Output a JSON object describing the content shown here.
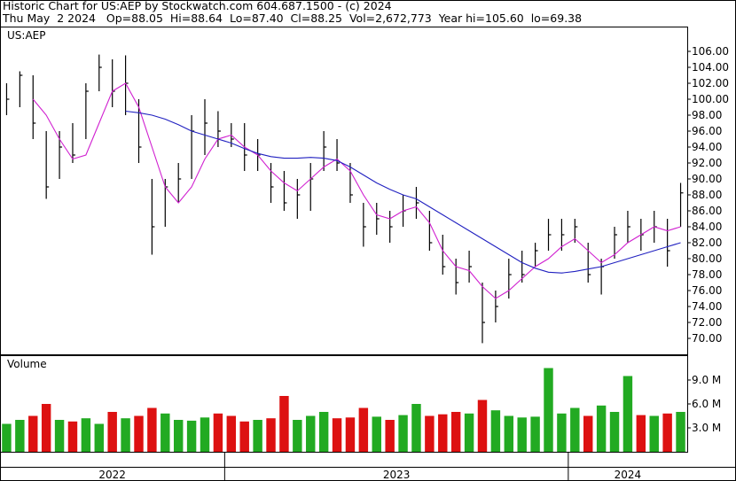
{
  "header": {
    "line1": "Historic Chart for US:AEP by Stockwatch.com 604.687.1500 - (c) 2024",
    "line2": "Thu May  2 2024   Op=88.05  Hi=88.64  Lo=87.40  Cl=88.25  Vol=2,672,773  Year hi=105.60  lo=69.38"
  },
  "chart_data": [
    {
      "type": "hlc",
      "title": "US:AEP",
      "bar_color": "#000000",
      "categories": [
        "2022",
        null,
        null,
        null,
        null,
        null,
        null,
        null,
        null,
        null,
        null,
        null,
        null,
        null,
        null,
        null,
        null,
        "2023",
        null,
        null,
        null,
        null,
        null,
        null,
        null,
        null,
        null,
        null,
        null,
        null,
        null,
        null,
        null,
        null,
        null,
        null,
        null,
        null,
        null,
        null,
        null,
        null,
        null,
        "2024",
        null,
        null,
        null,
        null,
        null,
        null,
        null,
        null
      ],
      "high": [
        102,
        103.5,
        103,
        96,
        96,
        97,
        102,
        105.6,
        105,
        105.5,
        100,
        90,
        90,
        92,
        98,
        100,
        98.5,
        97,
        97,
        95,
        92,
        91,
        90,
        92,
        96,
        95,
        92,
        87,
        87,
        86,
        88,
        89,
        86,
        83,
        80,
        81,
        77,
        76,
        80,
        81,
        82,
        85,
        85,
        85,
        82,
        80,
        84,
        86,
        85,
        86,
        85,
        89.5
      ],
      "low": [
        98,
        99,
        95,
        87.5,
        90,
        92,
        95,
        101,
        99,
        98,
        92,
        80.5,
        84,
        87,
        90,
        93,
        94,
        94,
        91,
        91,
        87,
        86,
        85,
        86,
        91,
        91,
        87,
        81.5,
        83,
        82,
        84,
        85,
        81,
        78,
        75.5,
        77,
        69.4,
        72,
        75,
        77,
        79,
        81,
        81,
        82,
        77,
        75.5,
        80,
        82,
        81,
        82,
        79,
        84
      ],
      "close": [
        100,
        103,
        97,
        89,
        94,
        93,
        101,
        104,
        101,
        102,
        94,
        84,
        89,
        90,
        96,
        97,
        96,
        95,
        93,
        93,
        89,
        87,
        88,
        90,
        94,
        92,
        88,
        84,
        85,
        84,
        86,
        87,
        82,
        79,
        77,
        79,
        72,
        74,
        78,
        78,
        81,
        83,
        83,
        84,
        78,
        79,
        83,
        84,
        83,
        84,
        81,
        88.25
      ],
      "lines": [
        {
          "color": "#d020d0",
          "values": [
            null,
            null,
            100,
            98,
            95,
            92.5,
            93,
            97,
            101,
            102,
            99,
            94,
            89,
            87,
            89,
            92.5,
            95,
            95.5,
            94,
            93,
            91,
            89.5,
            88.5,
            90,
            91.5,
            92.5,
            91,
            88,
            85.5,
            85,
            86,
            86.5,
            84.5,
            81,
            79,
            78.5,
            76.5,
            75,
            76,
            77.5,
            79,
            80,
            81.5,
            82.5,
            81,
            79.5,
            80.5,
            82,
            83,
            84,
            83.5,
            84
          ]
        },
        {
          "color": "#2020c0",
          "values": [
            null,
            null,
            null,
            null,
            null,
            null,
            null,
            null,
            null,
            98.5,
            98.3,
            98,
            97.5,
            96.8,
            96,
            95.5,
            95,
            94.5,
            93.8,
            93.2,
            92.8,
            92.6,
            92.6,
            92.7,
            92.6,
            92.3,
            91.5,
            90.5,
            89.5,
            88.7,
            88,
            87.5,
            86.5,
            85.5,
            84.5,
            83.5,
            82.5,
            81.5,
            80.5,
            79.5,
            78.8,
            78.3,
            78.2,
            78.4,
            78.7,
            79,
            79.5,
            80,
            80.5,
            81,
            81.5,
            82
          ]
        }
      ],
      "ylim": [
        68,
        109
      ],
      "yticks": [
        {
          "value": 70,
          "label": "70.00"
        },
        {
          "value": 72,
          "label": "72.00"
        },
        {
          "value": 74,
          "label": "74.00"
        },
        {
          "value": 76,
          "label": "76.00"
        },
        {
          "value": 78,
          "label": "78.00"
        },
        {
          "value": 80,
          "label": "80.00"
        },
        {
          "value": 82,
          "label": "82.00"
        },
        {
          "value": 84,
          "label": "84.00"
        },
        {
          "value": 86,
          "label": "86.00"
        },
        {
          "value": 88,
          "label": "88.00"
        },
        {
          "value": 90,
          "label": "90.00"
        },
        {
          "value": 92,
          "label": "92.00"
        },
        {
          "value": 94,
          "label": "94.00"
        },
        {
          "value": 96,
          "label": "96.00"
        },
        {
          "value": 98,
          "label": "98.00"
        },
        {
          "value": 100,
          "label": "100.00"
        },
        {
          "value": 102,
          "label": "102.00"
        },
        {
          "value": 104,
          "label": "104.00"
        },
        {
          "value": 106,
          "label": "106.00"
        }
      ]
    },
    {
      "type": "bar",
      "title": "Volume",
      "up_color": "#22aa22",
      "down_color": "#dd1111",
      "values": [
        3.5,
        4,
        4.5,
        6,
        4,
        3.8,
        4.2,
        3.5,
        5,
        4.2,
        4.5,
        5.5,
        4.8,
        4,
        3.9,
        4.3,
        4.8,
        4.5,
        3.8,
        4,
        4.2,
        7,
        4,
        4.5,
        5,
        4.2,
        4.3,
        5.5,
        4.4,
        4,
        4.6,
        6,
        4.5,
        4.7,
        5,
        4.8,
        6.5,
        5.2,
        4.5,
        4.3,
        4.4,
        10.5,
        4.8,
        5.5,
        4.5,
        5.8,
        5,
        9.5,
        4.6,
        4.5,
        4.8,
        5
      ],
      "ylim": [
        0,
        12
      ],
      "yticks": [
        {
          "value": 3,
          "label": "3.0 M"
        },
        {
          "value": 6,
          "label": "6.0 M"
        },
        {
          "value": 9,
          "label": "9.0 M"
        }
      ]
    }
  ]
}
